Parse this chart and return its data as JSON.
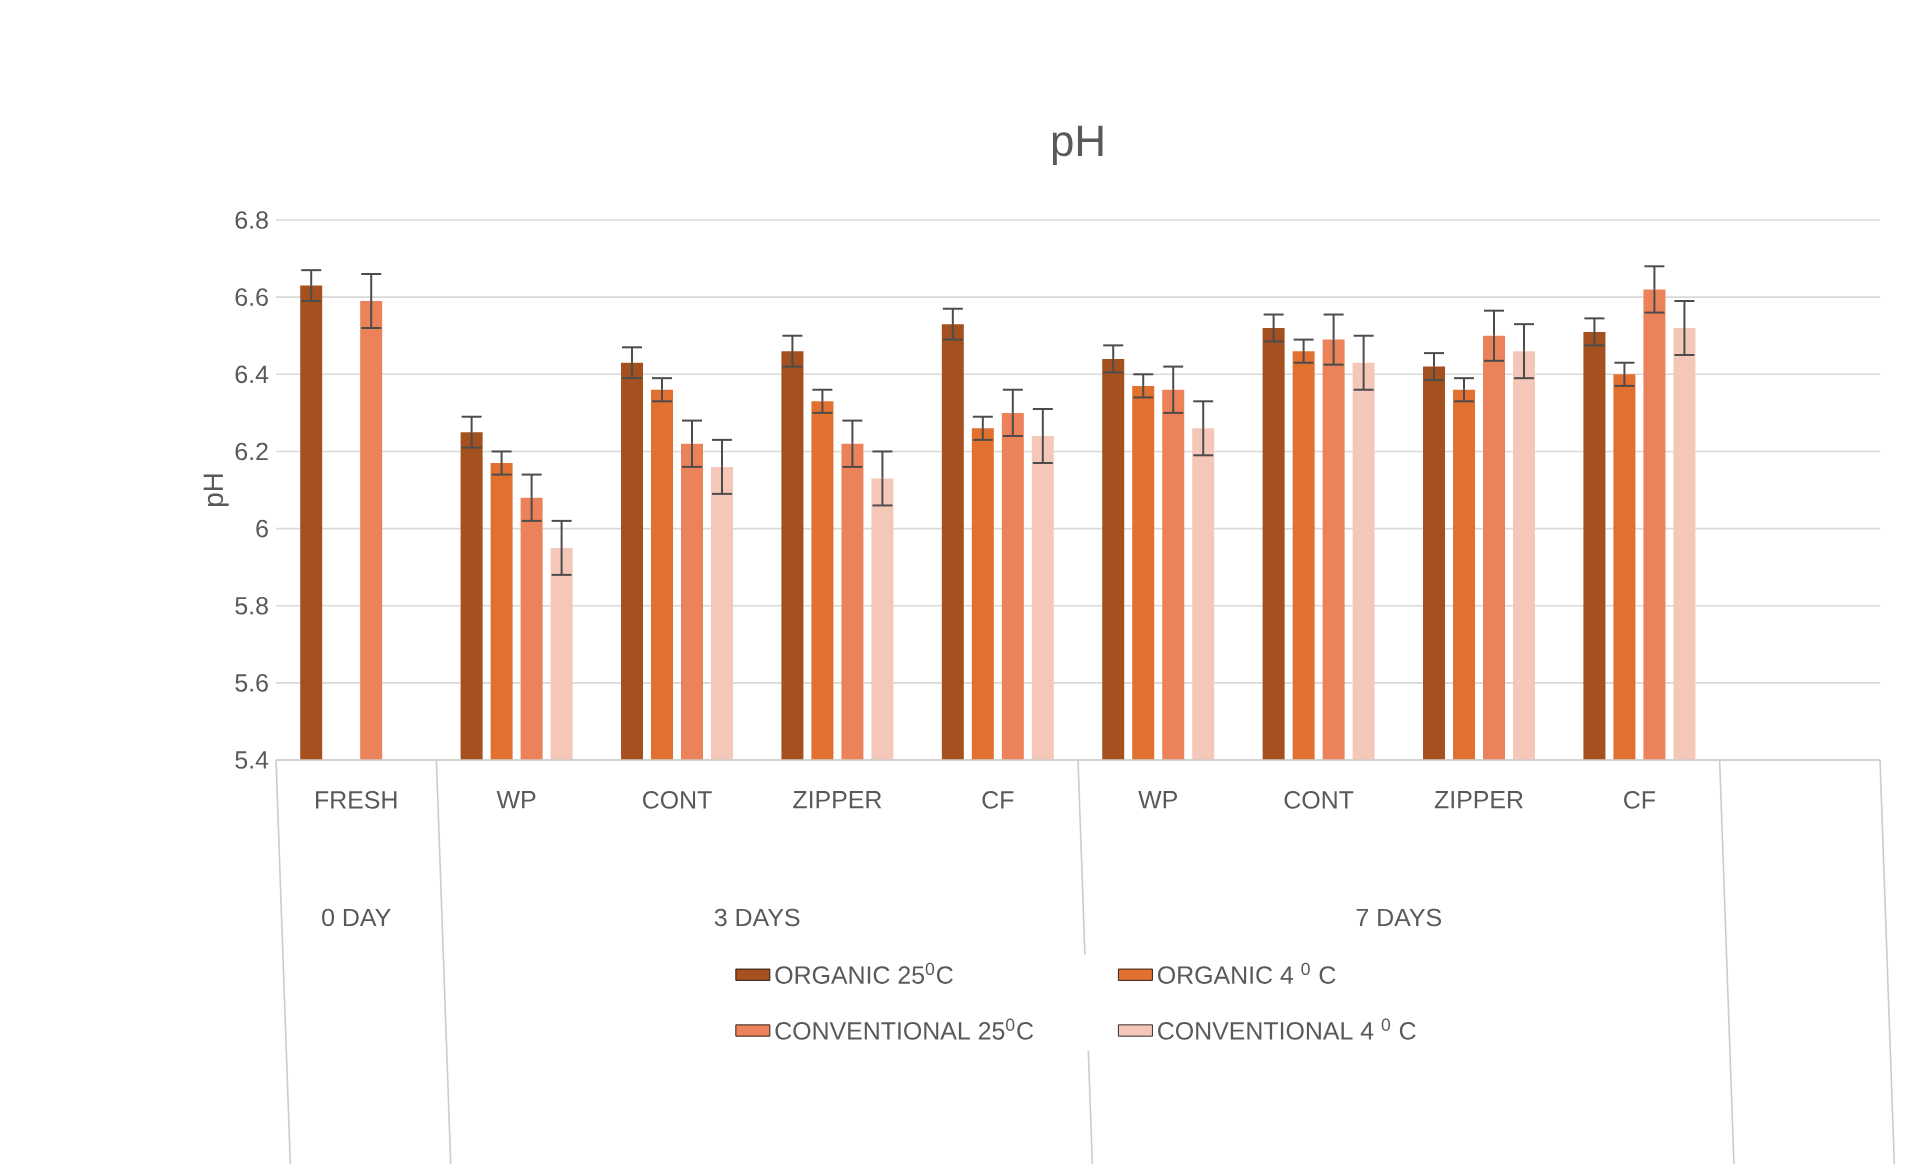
{
  "chart_data": {
    "type": "bar",
    "title": "pH",
    "ylabel": "pH",
    "categories": [
      "FRESH",
      "WP",
      "CONT",
      "ZIPPER",
      "CF",
      "WP",
      "CONT",
      "ZIPPER",
      "CF",
      null
    ],
    "annotations": [
      "0 DAY",
      "3 DAYS",
      "7 DAYS"
    ],
    "series": [
      {
        "name": "ORGANIC 25$^{0}$C",
        "color": "#a5501f",
        "values": [
          6.63,
          6.25,
          6.43,
          6.46,
          6.53,
          6.44,
          6.52,
          6.42,
          6.51,
          null
        ],
        "errors": [
          0.04,
          0.04,
          0.04,
          0.04,
          0.04,
          0.035,
          0.035,
          0.035,
          0.035,
          null
        ]
      },
      {
        "name": "ORGANIC 4 $^{0}$ C",
        "color": "#e2702e",
        "values": [
          null,
          6.17,
          6.36,
          6.33,
          6.26,
          6.37,
          6.46,
          6.36,
          6.4,
          null
        ],
        "errors": [
          null,
          0.03,
          0.03,
          0.03,
          0.03,
          0.03,
          0.03,
          0.03,
          0.03,
          null
        ]
      },
      {
        "name": "CONVENTIONAL 25$^{0}$C",
        "color": "#eb8259",
        "values": [
          6.59,
          6.08,
          6.22,
          6.22,
          6.3,
          6.36,
          6.49,
          6.5,
          6.62,
          null
        ],
        "errors": [
          0.07,
          0.06,
          0.06,
          0.06,
          0.06,
          0.06,
          0.065,
          0.065,
          0.06,
          null
        ]
      },
      {
        "name": "CONVENTIONAL 4 $^{0}$ C",
        "color": "#f4c7b8",
        "values": [
          null,
          5.95,
          6.16,
          6.13,
          6.24,
          6.26,
          6.43,
          6.46,
          6.52,
          null
        ],
        "errors": [
          null,
          0.07,
          0.07,
          0.07,
          0.07,
          0.07,
          0.07,
          0.07,
          0.07,
          null
        ]
      }
    ],
    "ylim": [
      5.4,
      6.8
    ],
    "yticks": [
      5.4,
      5.6,
      5.8,
      6,
      6.2,
      6.4,
      6.6,
      6.8
    ],
    "grid": "y",
    "legend": "bottom"
  }
}
